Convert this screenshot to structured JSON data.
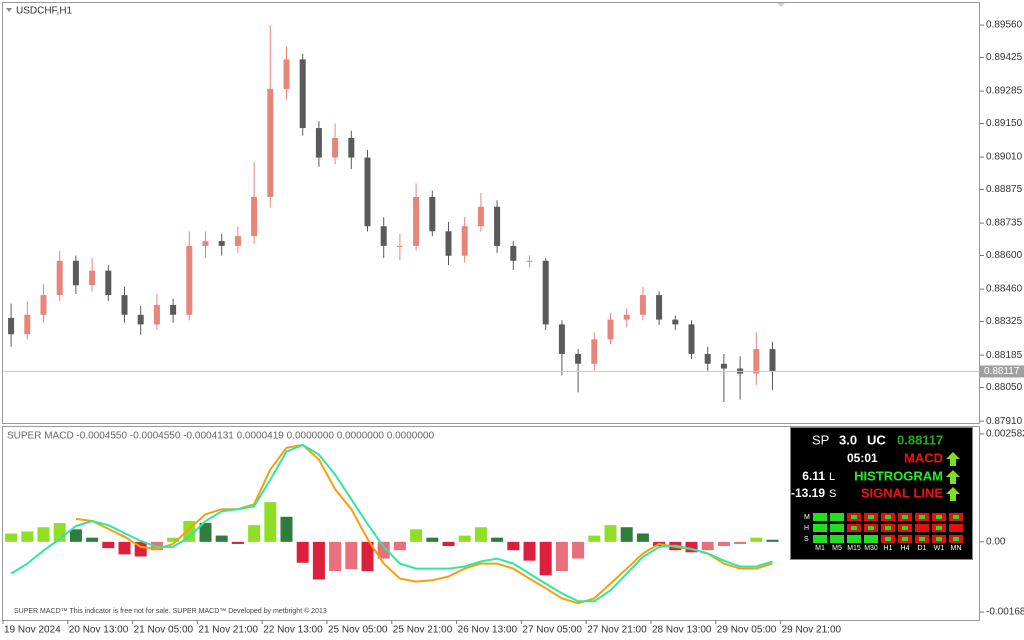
{
  "chart_data": [
    {
      "type": "candlestick",
      "title": "USDCHF,H1",
      "categories": [
        "19 Nov 2024",
        null,
        null,
        null,
        "20 Nov 13:00",
        null,
        null,
        null,
        "21 Nov 05:00",
        null,
        null,
        null,
        "21 Nov 21:00",
        null,
        null,
        null,
        "22 Nov 13:00",
        null,
        null,
        null,
        "25 Nov 05:00",
        null,
        null,
        null,
        "25 Nov 21:00",
        null,
        null,
        null,
        "26 Nov 13:00",
        null,
        null,
        null,
        "27 Nov 05:00",
        null,
        null,
        null,
        "27 Nov 21:00",
        null,
        null,
        null,
        "28 Nov 13:00",
        null,
        null,
        null,
        "29 Nov 05:00",
        null,
        null,
        null,
        "29 Nov 21:00"
      ],
      "open": [
        0.8834,
        0.88272,
        0.88353,
        0.88435,
        0.88578,
        0.88476,
        0.88537,
        0.88435,
        0.88353,
        0.88313,
        0.88394,
        0.88353,
        0.8864,
        0.8866,
        0.8864,
        0.88681,
        0.88844,
        0.89294,
        0.89417,
        0.89131,
        0.89008,
        0.8909,
        0.89008,
        0.88722,
        0.8864,
        0.8864,
        0.88844,
        0.88701,
        0.88599,
        0.88722,
        0.88803,
        0.8864,
        0.88578,
        0.88578,
        0.88313,
        0.8819,
        0.88149,
        0.88251,
        0.88333,
        0.88353,
        0.88435,
        0.88333,
        0.88313,
        0.8819,
        0.88149,
        0.88129,
        0.88108,
        0.8821,
        null
      ],
      "high": [
        0.884,
        0.8841,
        0.8848,
        0.8862,
        0.886,
        0.8859,
        0.8856,
        0.8847,
        0.8839,
        0.8844,
        0.8842,
        0.887,
        0.887,
        0.8869,
        0.8872,
        0.8899,
        0.8956,
        0.8947,
        0.8944,
        0.8916,
        0.8915,
        0.8912,
        0.8904,
        0.8876,
        0.8869,
        0.889,
        0.8887,
        0.8874,
        0.8876,
        0.8886,
        0.8883,
        0.8866,
        0.886,
        0.8859,
        0.8833,
        0.8821,
        0.8828,
        0.8836,
        0.8838,
        0.8847,
        0.8845,
        0.8835,
        0.8833,
        0.8822,
        0.8819,
        0.8818,
        0.8828,
        0.8824,
        null
      ],
      "low": [
        0.8822,
        0.8825,
        0.8832,
        0.8841,
        0.8844,
        0.8845,
        0.8841,
        0.8832,
        0.8827,
        0.8829,
        0.8832,
        0.8833,
        0.8859,
        0.886,
        0.8861,
        0.8865,
        0.888,
        0.8925,
        0.891,
        0.8897,
        0.8898,
        0.8896,
        0.887,
        0.8859,
        0.8858,
        0.8862,
        0.8868,
        0.8856,
        0.8857,
        0.887,
        0.8861,
        0.8854,
        0.8855,
        0.8829,
        0.881,
        0.8803,
        0.8812,
        0.8823,
        0.883,
        0.8833,
        0.8831,
        0.8829,
        0.8817,
        0.8812,
        0.8799,
        0.88,
        0.8806,
        0.8804,
        null
      ],
      "close": [
        0.88272,
        0.88353,
        0.88435,
        0.88578,
        0.88476,
        0.88537,
        0.88435,
        0.88353,
        0.88313,
        0.88394,
        0.88353,
        0.8864,
        0.8866,
        0.8864,
        0.88681,
        0.88844,
        0.89294,
        0.89417,
        0.89131,
        0.89008,
        0.8909,
        0.89008,
        0.88722,
        0.8864,
        0.8864,
        0.88844,
        0.88701,
        0.88599,
        0.88722,
        0.88803,
        0.8864,
        0.88578,
        0.88578,
        0.88313,
        0.8819,
        0.88149,
        0.88251,
        0.88333,
        0.88353,
        0.88435,
        0.88333,
        0.88313,
        0.8819,
        0.88149,
        0.88129,
        0.88108,
        0.8821,
        0.88117,
        null
      ],
      "ylim": [
        0.87898,
        0.89652
      ],
      "yticks": [
        {
          "value": 0.8956,
          "label": "0.89560"
        },
        0.89425,
        0.89285,
        {
          "value": 0.8915,
          "label": "0.89150"
        },
        {
          "value": 0.8901,
          "label": "0.89010"
        },
        0.88875,
        0.88735,
        {
          "value": 0.886,
          "label": "0.88600"
        },
        {
          "value": 0.8846,
          "label": "0.88460"
        },
        0.88325,
        0.88185,
        {
          "value": 0.8805,
          "label": "0.88050"
        },
        {
          "value": 0.8791,
          "label": "0.87910"
        }
      ],
      "last_price": 0.88117,
      "colors": {
        "up": "#e8857a",
        "down": "#5a5a5a",
        "last_price": "#a0a0a0"
      }
    },
    {
      "type": "macd",
      "title": "SUPER MACD -0.0004550 -0.0004550 -0.0004131 0.0000419 0.0000000 0.0000000 0.0000000",
      "footer": "SUPER MACD™ This indicator is free not for sale. SUPER MACD™ Developed by metbright © 2013",
      "values": [
        0.0002,
        0.00025,
        0.00035,
        0.00045,
        0.0003,
        0.0001,
        -0.00015,
        -0.0003,
        -0.00035,
        -0.0002,
        0.0001,
        0.0005,
        0.00045,
        0.00015,
        -5e-05,
        0.0004,
        0.00095,
        0.0006,
        -0.0005,
        -0.0009,
        -0.0007,
        -0.00065,
        -0.0007,
        -0.0004,
        -0.0002,
        0.0003,
        0.0001,
        -0.0001,
        0.00015,
        0.00035,
        0.0001,
        -0.0002,
        -0.00045,
        -0.0008,
        -0.0007,
        -0.0004,
        0.00015,
        0.0004,
        0.00035,
        0.0002,
        -0.0001,
        -0.0002,
        -0.00025,
        -0.0002,
        -0.0001,
        -5e-05,
        0.0001,
        5e-05,
        null
      ],
      "colors": {
        "pos_up": "#8fe024",
        "pos_down": "#2e7d3c",
        "neg_down": "#dc1f3c",
        "neg_up": "#e8707c"
      },
      "series": [
        {
          "color": "#f5a010",
          "values": [
            null,
            null,
            null,
            null,
            0.00055,
            0.0005,
            0.00031,
            0.00012,
            -0.00012,
            -0.00017,
            -5e-05,
            0.00031,
            0.00066,
            0.00078,
            0.00078,
            0.0009,
            0.00173,
            0.00225,
            0.00232,
            0.00197,
            0.00126,
            0.00078,
            7e-05,
            -0.00052,
            -0.00088,
            -0.00095,
            -0.00092,
            -0.00083,
            -0.00064,
            -0.00052,
            -0.00052,
            -0.00064,
            -0.00088,
            -0.00111,
            -0.00135,
            -0.00147,
            -0.00135,
            -0.001,
            -0.00064,
            -0.00028,
            -5e-05,
            -0.00012,
            -0.00017,
            -0.00028,
            -0.00052,
            -0.00064,
            -0.00064,
            -0.00052,
            null
          ]
        },
        {
          "color": "#2ee8a0",
          "values": [
            -0.00076,
            -0.00052,
            -0.00021,
            7e-05,
            0.00038,
            0.0005,
            0.0004,
            0.00021,
            2e-05,
            -0.00012,
            -0.00012,
            0.00012,
            0.0005,
            0.00073,
            0.00078,
            0.00085,
            0.00149,
            0.00216,
            0.00232,
            0.00209,
            0.00161,
            0.00102,
            0.00043,
            -0.00012,
            -0.00052,
            -0.00064,
            -0.00064,
            -0.00064,
            -0.00059,
            -0.00047,
            -0.0004,
            -0.00052,
            -0.00076,
            -0.001,
            -0.00123,
            -0.00142,
            -0.00142,
            -0.00116,
            -0.00076,
            -0.00036,
            -0.00012,
            -9e-05,
            -0.00017,
            -0.00028,
            -0.00045,
            -0.00059,
            -0.00059,
            -0.00047,
            null
          ]
        }
      ],
      "ylim": [
        -0.00187,
        0.002748
      ],
      "yticks": [
        0.002582,
        {
          "value": 0,
          "label": "0.00"
        },
        {
          "value": -0.00168,
          "label": "-0.001680"
        }
      ]
    }
  ],
  "dashboard": {
    "spread_label": "SP",
    "spread": "3.0",
    "uc_label": "UC",
    "price": "0.88117",
    "time": "05:01",
    "macd": "MACD",
    "l_value": "6.11",
    "l_label": "L",
    "histogram": "HISTROGRAM",
    "s_value": "-13.19",
    "s_label": "S",
    "signal": "SIGNAL LINE",
    "rows": [
      "M",
      "H",
      "S"
    ],
    "columns": [
      "M1",
      "M5",
      "M15",
      "M30",
      "H1",
      "H4",
      "D1",
      "W1",
      "MN"
    ],
    "palette": {
      "G": "#22dd22",
      "R": "#dd1111"
    },
    "cells": [
      [
        "G",
        "G",
        "RG",
        "RG",
        "RG",
        "RG",
        "RG",
        "RG",
        "RG"
      ],
      [
        "G",
        "G",
        "RG",
        "RG",
        "RG",
        "RG",
        "R",
        "RG",
        "R"
      ],
      [
        "G",
        "G",
        "G",
        "G",
        "RG",
        "RG",
        "RG",
        "RG",
        "RG"
      ]
    ]
  }
}
